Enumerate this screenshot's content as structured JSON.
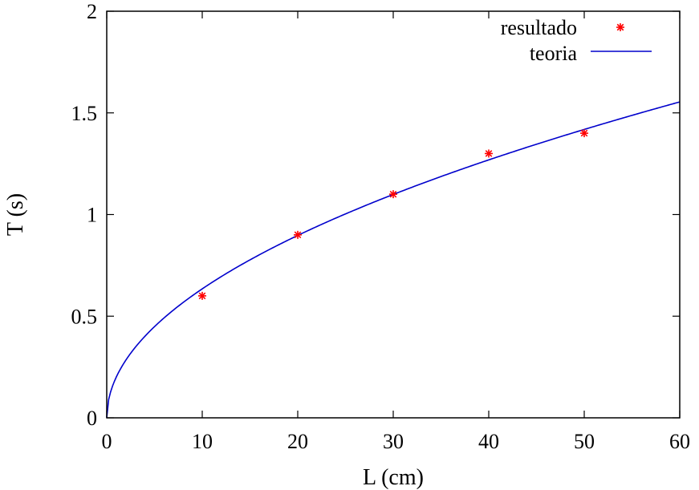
{
  "chart_data": {
    "type": "scatter",
    "xlabel": "L (cm)",
    "ylabel": "T (s)",
    "xlim": [
      0,
      60
    ],
    "ylim": [
      0,
      2
    ],
    "xticks": [
      "0",
      "10",
      "20",
      "30",
      "40",
      "50",
      "60"
    ],
    "yticks": [
      "0",
      "0.5",
      "1",
      "1.5",
      "2"
    ],
    "grid": false,
    "legend_position": "top-right",
    "series": [
      {
        "name": "resultado",
        "kind": "points",
        "color": "#ff0000",
        "x": [
          10,
          20,
          30,
          40,
          50
        ],
        "y": [
          0.6,
          0.9,
          1.1,
          1.3,
          1.4
        ]
      },
      {
        "name": "teoria",
        "kind": "line",
        "color": "#0000cc",
        "formula": "T = 2*pi*sqrt(L/g)",
        "g_cm_s2": 981
      }
    ]
  }
}
